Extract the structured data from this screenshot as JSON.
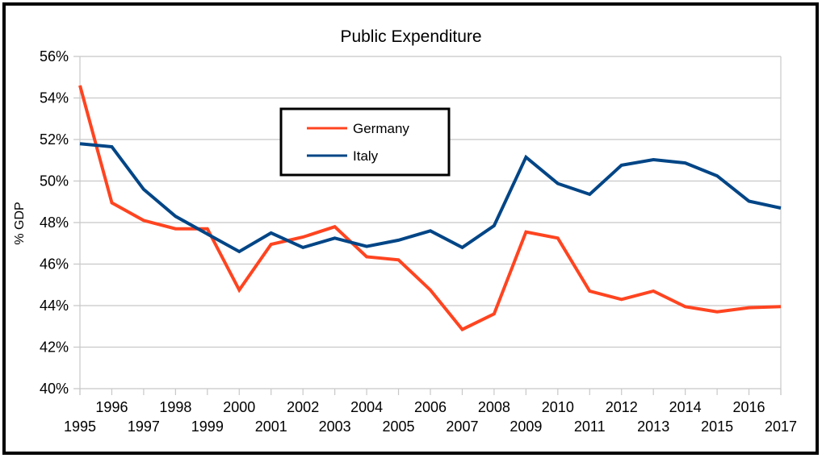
{
  "chart_data": {
    "type": "line",
    "title": "Public Expenditure",
    "xlabel": "",
    "ylabel": "% GDP",
    "ylim": [
      40,
      56
    ],
    "yticks": [
      40,
      42,
      44,
      46,
      48,
      50,
      52,
      54,
      56
    ],
    "ytick_labels": [
      "40%",
      "42%",
      "44%",
      "46%",
      "48%",
      "50%",
      "52%",
      "54%",
      "56%"
    ],
    "grid": "horizontal",
    "legend_position": "upper-center",
    "x": [
      "1995",
      "1996",
      "1997",
      "1998",
      "1999",
      "2000",
      "2001",
      "2002",
      "2003",
      "2004",
      "2005",
      "2006",
      "2007",
      "2008",
      "2009",
      "2010",
      "2011",
      "2012",
      "2013",
      "2014",
      "2015",
      "2016",
      "2017"
    ],
    "series": [
      {
        "name": "Germany",
        "color": "#ff4420",
        "values": [
          54.6,
          48.95,
          48.1,
          47.7,
          47.7,
          44.75,
          46.95,
          47.3,
          47.8,
          46.35,
          46.2,
          44.75,
          42.85,
          43.6,
          47.55,
          47.25,
          44.7,
          44.3,
          44.7,
          43.95,
          43.7,
          43.9,
          43.95
        ]
      },
      {
        "name": "Italy",
        "color": "#004586",
        "values": [
          51.8,
          51.65,
          49.6,
          48.3,
          47.45,
          46.6,
          47.5,
          46.8,
          47.25,
          46.85,
          47.15,
          47.6,
          46.8,
          47.85,
          51.15,
          49.88,
          49.36,
          50.76,
          51.03,
          50.87,
          50.25,
          49.03,
          48.7
        ]
      }
    ]
  }
}
